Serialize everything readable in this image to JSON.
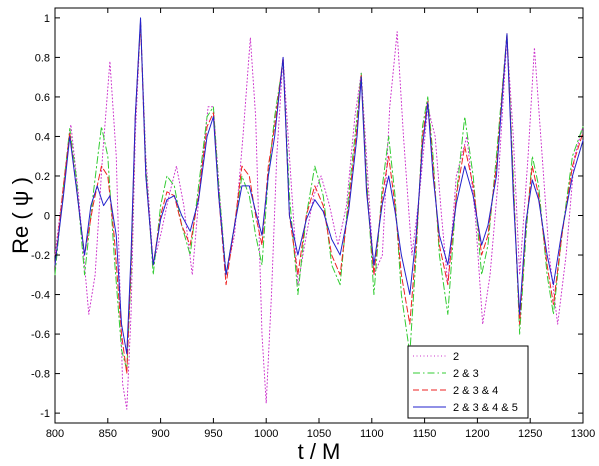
{
  "chart_data": {
    "type": "line",
    "xlabel": "t / M",
    "ylabel": "Re ( ψ  )",
    "xlim": [
      800,
      1300
    ],
    "ylim": [
      -1.05,
      1.05
    ],
    "xticks": [
      800,
      850,
      900,
      950,
      1000,
      1050,
      1100,
      1150,
      1200,
      1250,
      1300
    ],
    "yticks": [
      -1,
      -0.8,
      -0.6,
      -0.4,
      -0.2,
      0,
      0.2,
      0.4,
      0.6,
      0.8,
      1
    ],
    "grid": false,
    "legend_position": "bottom-right",
    "series": [
      {
        "name": "2",
        "color": "#cc33cc",
        "dash": "dotted",
        "points": [
          [
            800,
            -0.2
          ],
          [
            808,
            0.15
          ],
          [
            815,
            0.46
          ],
          [
            822,
            0.12
          ],
          [
            832,
            -0.5
          ],
          [
            838,
            -0.3
          ],
          [
            845,
            0.3
          ],
          [
            852,
            0.78
          ],
          [
            858,
            0.3
          ],
          [
            864,
            -0.85
          ],
          [
            868,
            -0.98
          ],
          [
            872,
            -0.5
          ],
          [
            876,
            0.4
          ],
          [
            881,
            0.98
          ],
          [
            886,
            0.3
          ],
          [
            893,
            -0.25
          ],
          [
            900,
            -0.1
          ],
          [
            908,
            0.1
          ],
          [
            915,
            0.25
          ],
          [
            922,
            0.05
          ],
          [
            930,
            -0.3
          ],
          [
            938,
            0.2
          ],
          [
            945,
            0.55
          ],
          [
            950,
            0.55
          ],
          [
            956,
            0.1
          ],
          [
            962,
            -0.3
          ],
          [
            970,
            -0.1
          ],
          [
            978,
            0.4
          ],
          [
            985,
            0.9
          ],
          [
            990,
            0.5
          ],
          [
            996,
            -0.6
          ],
          [
            1000,
            -0.95
          ],
          [
            1005,
            -0.4
          ],
          [
            1010,
            0.3
          ],
          [
            1016,
            0.8
          ],
          [
            1022,
            0.3
          ],
          [
            1030,
            -0.35
          ],
          [
            1038,
            -0.1
          ],
          [
            1045,
            0.1
          ],
          [
            1052,
            0.2
          ],
          [
            1060,
            0.05
          ],
          [
            1068,
            -0.15
          ],
          [
            1076,
            0.05
          ],
          [
            1084,
            0.5
          ],
          [
            1090,
            0.72
          ],
          [
            1095,
            0.3
          ],
          [
            1102,
            -0.3
          ],
          [
            1110,
            -0.2
          ],
          [
            1117,
            0.55
          ],
          [
            1124,
            0.93
          ],
          [
            1130,
            0.4
          ],
          [
            1138,
            -0.2
          ],
          [
            1145,
            0.1
          ],
          [
            1153,
            0.55
          ],
          [
            1160,
            0.4
          ],
          [
            1166,
            0.0
          ],
          [
            1172,
            -0.35
          ],
          [
            1180,
            0.2
          ],
          [
            1190,
            0.4
          ],
          [
            1198,
            0.0
          ],
          [
            1205,
            -0.55
          ],
          [
            1212,
            -0.3
          ],
          [
            1220,
            0.2
          ],
          [
            1228,
            0.9
          ],
          [
            1234,
            0.4
          ],
          [
            1240,
            -0.3
          ],
          [
            1248,
            0.3
          ],
          [
            1254,
            0.85
          ],
          [
            1260,
            0.4
          ],
          [
            1268,
            -0.2
          ],
          [
            1276,
            -0.55
          ],
          [
            1284,
            -0.2
          ],
          [
            1292,
            0.3
          ],
          [
            1300,
            0.45
          ]
        ]
      },
      {
        "name": "2 & 3",
        "color": "#33cc33",
        "dash": "dashdot",
        "points": [
          [
            800,
            -0.3
          ],
          [
            808,
            0.15
          ],
          [
            814,
            0.44
          ],
          [
            820,
            0.2
          ],
          [
            828,
            -0.3
          ],
          [
            836,
            0.1
          ],
          [
            844,
            0.45
          ],
          [
            850,
            0.3
          ],
          [
            856,
            -0.2
          ],
          [
            863,
            -0.68
          ],
          [
            868,
            -0.78
          ],
          [
            872,
            -0.3
          ],
          [
            876,
            0.5
          ],
          [
            881,
            0.98
          ],
          [
            886,
            0.25
          ],
          [
            893,
            -0.3
          ],
          [
            900,
            0.05
          ],
          [
            906,
            0.2
          ],
          [
            913,
            0.15
          ],
          [
            920,
            -0.05
          ],
          [
            928,
            -0.2
          ],
          [
            936,
            0.15
          ],
          [
            944,
            0.5
          ],
          [
            950,
            0.55
          ],
          [
            955,
            0.15
          ],
          [
            962,
            -0.3
          ],
          [
            970,
            -0.05
          ],
          [
            977,
            0.2
          ],
          [
            984,
            0.1
          ],
          [
            990,
            -0.1
          ],
          [
            996,
            -0.25
          ],
          [
            1002,
            0.2
          ],
          [
            1008,
            0.5
          ],
          [
            1016,
            0.78
          ],
          [
            1022,
            0.1
          ],
          [
            1030,
            -0.4
          ],
          [
            1038,
            0.0
          ],
          [
            1046,
            0.25
          ],
          [
            1054,
            0.1
          ],
          [
            1062,
            -0.25
          ],
          [
            1070,
            -0.35
          ],
          [
            1078,
            0.1
          ],
          [
            1086,
            0.5
          ],
          [
            1090,
            0.72
          ],
          [
            1095,
            0.2
          ],
          [
            1102,
            -0.4
          ],
          [
            1110,
            0.15
          ],
          [
            1116,
            0.4
          ],
          [
            1122,
            0.1
          ],
          [
            1128,
            -0.4
          ],
          [
            1136,
            -0.7
          ],
          [
            1142,
            -0.2
          ],
          [
            1148,
            0.45
          ],
          [
            1153,
            0.6
          ],
          [
            1158,
            0.3
          ],
          [
            1164,
            -0.2
          ],
          [
            1172,
            -0.5
          ],
          [
            1180,
            0.1
          ],
          [
            1188,
            0.5
          ],
          [
            1196,
            0.2
          ],
          [
            1204,
            -0.3
          ],
          [
            1210,
            -0.15
          ],
          [
            1218,
            0.3
          ],
          [
            1228,
            0.92
          ],
          [
            1234,
            0.2
          ],
          [
            1240,
            -0.6
          ],
          [
            1246,
            -0.1
          ],
          [
            1252,
            0.3
          ],
          [
            1258,
            0.15
          ],
          [
            1266,
            -0.3
          ],
          [
            1272,
            -0.5
          ],
          [
            1280,
            -0.1
          ],
          [
            1290,
            0.3
          ],
          [
            1300,
            0.45
          ]
        ]
      },
      {
        "name": "2 & 3 & 4",
        "color": "#ee2222",
        "dash": "dashed",
        "points": [
          [
            800,
            -0.25
          ],
          [
            808,
            0.15
          ],
          [
            814,
            0.42
          ],
          [
            820,
            0.15
          ],
          [
            828,
            -0.2
          ],
          [
            836,
            0.05
          ],
          [
            844,
            0.25
          ],
          [
            850,
            0.2
          ],
          [
            856,
            -0.1
          ],
          [
            863,
            -0.6
          ],
          [
            868,
            -0.8
          ],
          [
            872,
            -0.25
          ],
          [
            876,
            0.5
          ],
          [
            881,
            0.98
          ],
          [
            886,
            0.2
          ],
          [
            893,
            -0.25
          ],
          [
            900,
            0.0
          ],
          [
            906,
            0.12
          ],
          [
            913,
            0.1
          ],
          [
            920,
            -0.05
          ],
          [
            928,
            -0.15
          ],
          [
            936,
            0.1
          ],
          [
            944,
            0.45
          ],
          [
            950,
            0.52
          ],
          [
            955,
            0.1
          ],
          [
            962,
            -0.35
          ],
          [
            970,
            -0.05
          ],
          [
            977,
            0.25
          ],
          [
            984,
            0.2
          ],
          [
            990,
            0.0
          ],
          [
            996,
            -0.15
          ],
          [
            1002,
            0.25
          ],
          [
            1008,
            0.45
          ],
          [
            1016,
            0.8
          ],
          [
            1022,
            0.0
          ],
          [
            1030,
            -0.3
          ],
          [
            1038,
            0.0
          ],
          [
            1046,
            0.15
          ],
          [
            1054,
            0.05
          ],
          [
            1062,
            -0.2
          ],
          [
            1070,
            -0.3
          ],
          [
            1078,
            0.05
          ],
          [
            1086,
            0.45
          ],
          [
            1090,
            0.71
          ],
          [
            1095,
            0.15
          ],
          [
            1102,
            -0.3
          ],
          [
            1110,
            0.1
          ],
          [
            1116,
            0.3
          ],
          [
            1122,
            0.05
          ],
          [
            1128,
            -0.3
          ],
          [
            1136,
            -0.55
          ],
          [
            1142,
            -0.15
          ],
          [
            1148,
            0.4
          ],
          [
            1153,
            0.58
          ],
          [
            1158,
            0.25
          ],
          [
            1164,
            -0.15
          ],
          [
            1172,
            -0.35
          ],
          [
            1180,
            0.1
          ],
          [
            1188,
            0.35
          ],
          [
            1196,
            0.15
          ],
          [
            1204,
            -0.2
          ],
          [
            1210,
            -0.1
          ],
          [
            1218,
            0.25
          ],
          [
            1228,
            0.92
          ],
          [
            1234,
            0.15
          ],
          [
            1240,
            -0.55
          ],
          [
            1246,
            -0.05
          ],
          [
            1252,
            0.25
          ],
          [
            1258,
            0.1
          ],
          [
            1266,
            -0.25
          ],
          [
            1272,
            -0.45
          ],
          [
            1280,
            -0.1
          ],
          [
            1290,
            0.25
          ],
          [
            1300,
            0.42
          ]
        ]
      },
      {
        "name": "2 & 3 & 4 & 5",
        "color": "#2222cc",
        "dash": "solid",
        "points": [
          [
            800,
            -0.25
          ],
          [
            808,
            0.1
          ],
          [
            814,
            0.4
          ],
          [
            820,
            0.15
          ],
          [
            828,
            -0.2
          ],
          [
            834,
            0.05
          ],
          [
            840,
            0.15
          ],
          [
            846,
            0.05
          ],
          [
            852,
            0.1
          ],
          [
            858,
            -0.1
          ],
          [
            863,
            -0.55
          ],
          [
            868,
            -0.7
          ],
          [
            872,
            -0.2
          ],
          [
            876,
            0.5
          ],
          [
            881,
            1.0
          ],
          [
            886,
            0.2
          ],
          [
            893,
            -0.25
          ],
          [
            900,
            -0.02
          ],
          [
            906,
            0.08
          ],
          [
            913,
            0.1
          ],
          [
            920,
            0.0
          ],
          [
            928,
            -0.08
          ],
          [
            936,
            0.08
          ],
          [
            944,
            0.4
          ],
          [
            950,
            0.5
          ],
          [
            955,
            0.1
          ],
          [
            962,
            -0.3
          ],
          [
            970,
            -0.05
          ],
          [
            977,
            0.15
          ],
          [
            984,
            0.15
          ],
          [
            990,
            0.02
          ],
          [
            996,
            -0.1
          ],
          [
            1002,
            0.2
          ],
          [
            1008,
            0.4
          ],
          [
            1016,
            0.8
          ],
          [
            1022,
            0.0
          ],
          [
            1030,
            -0.2
          ],
          [
            1038,
            -0.02
          ],
          [
            1046,
            0.08
          ],
          [
            1054,
            0.02
          ],
          [
            1062,
            -0.12
          ],
          [
            1070,
            -0.2
          ],
          [
            1078,
            0.02
          ],
          [
            1086,
            0.4
          ],
          [
            1090,
            0.7
          ],
          [
            1095,
            0.12
          ],
          [
            1102,
            -0.25
          ],
          [
            1110,
            0.06
          ],
          [
            1116,
            0.2
          ],
          [
            1122,
            0.02
          ],
          [
            1128,
            -0.2
          ],
          [
            1136,
            -0.4
          ],
          [
            1142,
            -0.1
          ],
          [
            1148,
            0.35
          ],
          [
            1153,
            0.57
          ],
          [
            1158,
            0.2
          ],
          [
            1164,
            -0.1
          ],
          [
            1172,
            -0.25
          ],
          [
            1180,
            0.06
          ],
          [
            1188,
            0.25
          ],
          [
            1196,
            0.1
          ],
          [
            1204,
            -0.15
          ],
          [
            1210,
            -0.05
          ],
          [
            1218,
            0.2
          ],
          [
            1228,
            0.92
          ],
          [
            1234,
            0.1
          ],
          [
            1240,
            -0.5
          ],
          [
            1246,
            -0.03
          ],
          [
            1252,
            0.18
          ],
          [
            1258,
            0.08
          ],
          [
            1266,
            -0.2
          ],
          [
            1272,
            -0.35
          ],
          [
            1280,
            -0.08
          ],
          [
            1290,
            0.2
          ],
          [
            1300,
            0.38
          ]
        ]
      }
    ]
  }
}
